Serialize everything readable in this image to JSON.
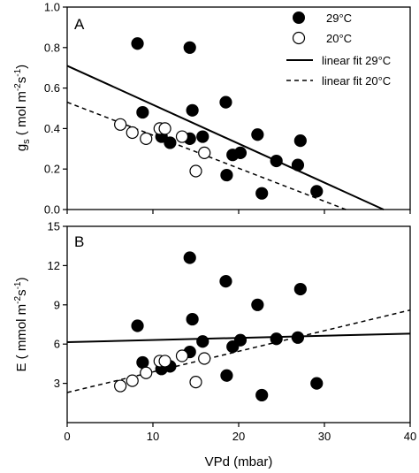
{
  "chart_data": [
    {
      "type": "scatter",
      "panel_label": "A",
      "ylabel": "gs ( mol m-2s-1)",
      "ylabel_parts": {
        "main": "g",
        "sub": "s",
        "open": " ( mol m",
        "exp1": "-2",
        "mid": "s",
        "exp2": "-1",
        "close": ")"
      },
      "xlabel": "",
      "xlim": [
        0,
        40
      ],
      "ylim": [
        0,
        1.0
      ],
      "yticks": [
        "0.0",
        "0.2",
        "0.4",
        "0.6",
        "0.8",
        "1.0"
      ],
      "legend": {
        "placement": "top-right",
        "entries": [
          {
            "label": "29°C",
            "marker": "filled-circle"
          },
          {
            "label": "20°C",
            "marker": "open-circle"
          },
          {
            "label": "linear fit 29°C",
            "line": "solid"
          },
          {
            "label": "linear fit 20°C",
            "line": "dashed"
          }
        ]
      },
      "series": [
        {
          "marker": "filled-circle",
          "points": [
            [
              8.2,
              0.82
            ],
            [
              8.8,
              0.48
            ],
            [
              14.3,
              0.8
            ],
            [
              14.6,
              0.49
            ],
            [
              11.0,
              0.36
            ],
            [
              12.0,
              0.33
            ],
            [
              14.3,
              0.35
            ],
            [
              15.8,
              0.36
            ],
            [
              18.5,
              0.53
            ],
            [
              18.6,
              0.17
            ],
            [
              19.3,
              0.27
            ],
            [
              20.2,
              0.28
            ],
            [
              22.2,
              0.37
            ],
            [
              22.7,
              0.08
            ],
            [
              24.4,
              0.24
            ],
            [
              26.9,
              0.22
            ],
            [
              27.2,
              0.34
            ],
            [
              29.1,
              0.09
            ]
          ]
        },
        {
          "marker": "open-circle",
          "points": [
            [
              6.2,
              0.42
            ],
            [
              7.6,
              0.38
            ],
            [
              9.2,
              0.35
            ],
            [
              10.8,
              0.4
            ],
            [
              11.4,
              0.4
            ],
            [
              13.4,
              0.36
            ],
            [
              15.0,
              0.19
            ],
            [
              16.0,
              0.28
            ]
          ]
        }
      ],
      "fits": [
        {
          "style": "solid",
          "x": [
            0,
            36.9
          ],
          "y": [
            0.71,
            0.0
          ]
        },
        {
          "style": "dashed",
          "x": [
            0,
            32.5
          ],
          "y": [
            0.53,
            0.0
          ]
        }
      ]
    },
    {
      "type": "scatter",
      "panel_label": "B",
      "ylabel": "E ( mmol m-2s-1)",
      "ylabel_parts": {
        "main": "E",
        "sub": "",
        "open": " ( mmol m",
        "exp1": "-2",
        "mid": "s",
        "exp2": "-1",
        "close": ")"
      },
      "xlabel": "VPd (mbar)",
      "xlim": [
        0,
        40
      ],
      "ylim": [
        0,
        15
      ],
      "xticks": [
        "0",
        "10",
        "20",
        "30",
        "40"
      ],
      "yticks": [
        "3",
        "6",
        "9",
        "12",
        "15"
      ],
      "series": [
        {
          "marker": "filled-circle",
          "points": [
            [
              8.2,
              7.4
            ],
            [
              8.8,
              4.6
            ],
            [
              14.3,
              12.6
            ],
            [
              14.6,
              7.9
            ],
            [
              11.0,
              4.1
            ],
            [
              12.0,
              4.3
            ],
            [
              14.3,
              5.4
            ],
            [
              15.8,
              6.2
            ],
            [
              18.5,
              10.8
            ],
            [
              18.6,
              3.6
            ],
            [
              19.3,
              5.8
            ],
            [
              20.2,
              6.3
            ],
            [
              22.2,
              9.0
            ],
            [
              22.7,
              2.1
            ],
            [
              24.4,
              6.4
            ],
            [
              26.9,
              6.5
            ],
            [
              27.2,
              10.2
            ],
            [
              29.1,
              3.0
            ]
          ]
        },
        {
          "marker": "open-circle",
          "points": [
            [
              6.2,
              2.8
            ],
            [
              7.6,
              3.2
            ],
            [
              9.2,
              3.8
            ],
            [
              10.8,
              4.7
            ],
            [
              11.4,
              4.7
            ],
            [
              13.4,
              5.1
            ],
            [
              15.0,
              3.1
            ],
            [
              16.0,
              4.9
            ]
          ]
        }
      ],
      "fits": [
        {
          "style": "solid",
          "x": [
            0,
            40
          ],
          "y": [
            6.15,
            6.8
          ]
        },
        {
          "style": "dashed",
          "x": [
            0,
            40
          ],
          "y": [
            2.3,
            8.6
          ]
        }
      ]
    }
  ]
}
